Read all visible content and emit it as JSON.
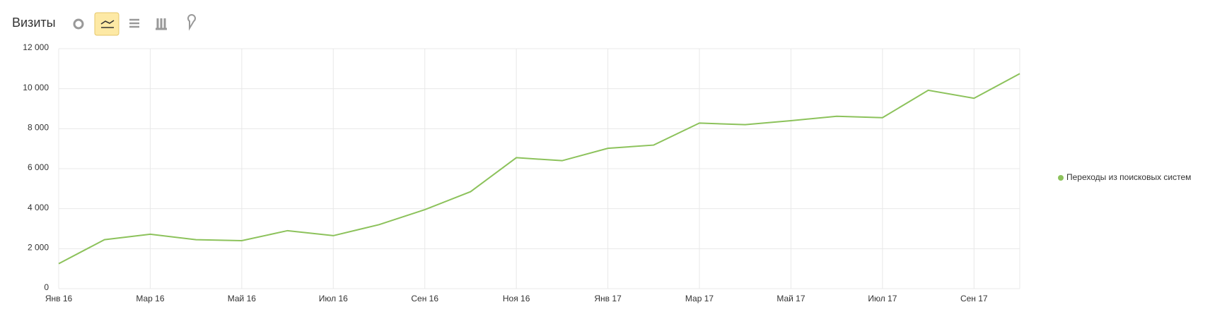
{
  "chart_data": {
    "type": "line",
    "title": "Визиты",
    "categories": [
      "Янв 16",
      null,
      "Мар 16",
      null,
      "Май 16",
      null,
      "Июл 16",
      null,
      "Сен 16",
      null,
      "Ноя 16",
      null,
      "Янв 17",
      null,
      "Мар 17",
      null,
      "Май 17",
      null,
      "Июл 17",
      null,
      "Сен 17",
      null
    ],
    "series": [
      {
        "name": "Переходы из поисковых систем",
        "color": "#8cc25b",
        "values": [
          1250,
          2450,
          2720,
          2450,
          2400,
          2900,
          2650,
          3200,
          3950,
          4850,
          6550,
          6400,
          7020,
          7180,
          8280,
          8200,
          8400,
          8620,
          8550,
          9920,
          9520,
          10750
        ]
      }
    ],
    "ylim": [
      0,
      12000
    ],
    "yticks": [
      0,
      {
        "value": 2000,
        "label": "2 000"
      },
      {
        "value": 4000,
        "label": "4 000"
      },
      {
        "value": 6000,
        "label": "6 000"
      },
      {
        "value": 8000,
        "label": "8 000"
      },
      {
        "value": 10000,
        "label": "10 000"
      },
      {
        "value": 12000,
        "label": "12 000"
      }
    ],
    "grid": true,
    "legend": "right"
  }
}
